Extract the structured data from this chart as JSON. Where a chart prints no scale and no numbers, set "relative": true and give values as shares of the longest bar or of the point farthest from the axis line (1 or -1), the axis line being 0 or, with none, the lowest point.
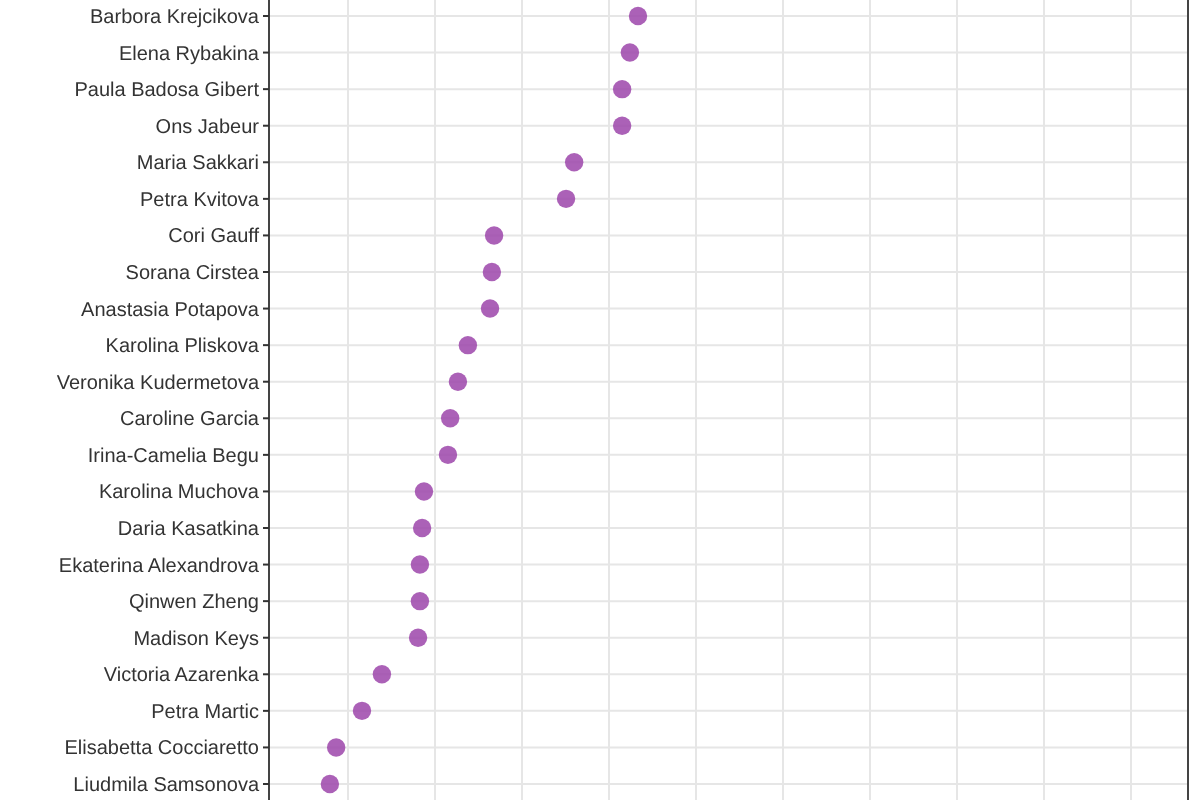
{
  "chart_data": {
    "type": "scatter",
    "relative": true,
    "orientation": "horizontal",
    "grid": true,
    "marker": "circle",
    "categories": [
      "Barbora Krejcikova",
      "Elena Rybakina",
      "Paula Badosa Gibert",
      "Ons Jabeur",
      "Maria Sakkari",
      "Petra Kvitova",
      "Cori Gauff",
      "Sorana Cirstea",
      "Anastasia Potapova",
      "Karolina Pliskova",
      "Veronika Kudermetova",
      "Caroline Garcia",
      "Irina-Camelia Begu",
      "Karolina Muchova",
      "Daria Kasatkina",
      "Ekaterina Alexandrova",
      "Qinwen Zheng",
      "Madison Keys",
      "Victoria Azarenka",
      "Petra Martic",
      "Elisabetta Cocciaretto",
      "Liudmila Samsonova"
    ],
    "series": [
      {
        "color": "#9c45aa",
        "values": [
          1,
          0.978,
          0.957,
          0.957,
          0.827,
          0.805,
          0.61,
          0.604,
          0.599,
          0.539,
          0.512,
          0.491,
          0.485,
          0.42,
          0.415,
          0.409,
          0.409,
          0.404,
          0.306,
          0.252,
          0.182,
          0.165
        ]
      }
    ]
  }
}
